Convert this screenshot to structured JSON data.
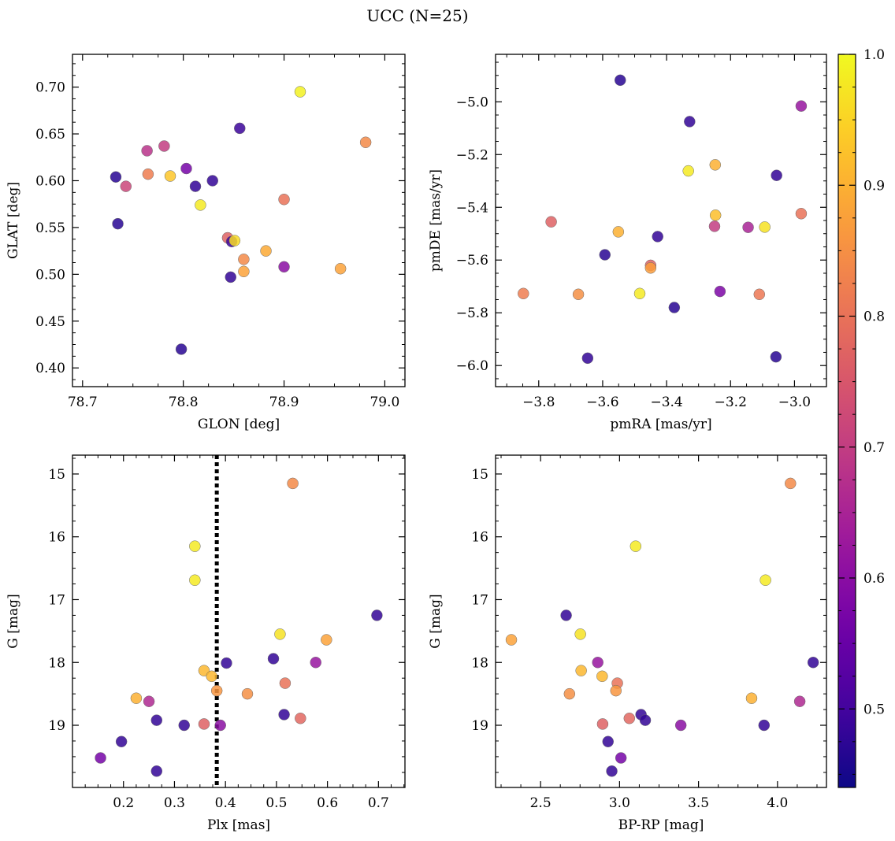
{
  "figure": {
    "title": "UCC (N=25)"
  },
  "colormap": {
    "name": "plasma",
    "range": [
      0.44,
      1.0
    ],
    "ticks": [
      0.5,
      0.6,
      0.7,
      0.8,
      0.9,
      1.0
    ],
    "tick_labels": [
      "0.5",
      "0.6",
      "0.7",
      "0.8",
      "0.9",
      "1.0"
    ],
    "stops": [
      "#0d0887",
      "#46039f",
      "#7201a8",
      "#9c179e",
      "#bd3786",
      "#d8576b",
      "#ed7953",
      "#fb9f3a",
      "#fdca26",
      "#f0f921"
    ]
  },
  "chart_data": [
    {
      "type": "scatter",
      "xlabel": "GLON [deg]",
      "ylabel": "GLAT [deg]",
      "xlim": [
        78.69,
        79.02
      ],
      "ylim": [
        0.38,
        0.735
      ],
      "xticks": [
        78.7,
        78.8,
        78.9,
        79.0
      ],
      "xtick_labels": [
        "78.7",
        "78.8",
        "78.9",
        "79.0"
      ],
      "yticks": [
        0.4,
        0.45,
        0.5,
        0.55,
        0.6,
        0.65,
        0.7
      ],
      "ytick_labels": [
        "0.40",
        "0.45",
        "0.50",
        "0.55",
        "0.60",
        "0.65",
        "0.70"
      ],
      "y_inverted": false,
      "points": [
        {
          "x": 78.733,
          "y": 0.604,
          "c": 0.47
        },
        {
          "x": 78.735,
          "y": 0.554,
          "c": 0.47
        },
        {
          "x": 78.743,
          "y": 0.594,
          "c": 0.72
        },
        {
          "x": 78.764,
          "y": 0.632,
          "c": 0.68
        },
        {
          "x": 78.765,
          "y": 0.607,
          "c": 0.82
        },
        {
          "x": 78.781,
          "y": 0.637,
          "c": 0.7
        },
        {
          "x": 78.787,
          "y": 0.605,
          "c": 0.93
        },
        {
          "x": 78.798,
          "y": 0.42,
          "c": 0.47
        },
        {
          "x": 78.803,
          "y": 0.613,
          "c": 0.57
        },
        {
          "x": 78.812,
          "y": 0.594,
          "c": 0.48
        },
        {
          "x": 78.817,
          "y": 0.574,
          "c": 0.98
        },
        {
          "x": 78.829,
          "y": 0.6,
          "c": 0.48
        },
        {
          "x": 78.844,
          "y": 0.539,
          "c": 0.77
        },
        {
          "x": 78.848,
          "y": 0.535,
          "c": 0.49
        },
        {
          "x": 78.851,
          "y": 0.536,
          "c": 0.96
        },
        {
          "x": 78.847,
          "y": 0.497,
          "c": 0.48
        },
        {
          "x": 78.856,
          "y": 0.656,
          "c": 0.49
        },
        {
          "x": 78.86,
          "y": 0.516,
          "c": 0.84
        },
        {
          "x": 78.86,
          "y": 0.503,
          "c": 0.88
        },
        {
          "x": 78.882,
          "y": 0.525,
          "c": 0.89
        },
        {
          "x": 78.9,
          "y": 0.58,
          "c": 0.8
        },
        {
          "x": 78.9,
          "y": 0.508,
          "c": 0.6
        },
        {
          "x": 78.916,
          "y": 0.695,
          "c": 0.99
        },
        {
          "x": 78.956,
          "y": 0.506,
          "c": 0.88
        },
        {
          "x": 78.981,
          "y": 0.641,
          "c": 0.84
        }
      ]
    },
    {
      "type": "scatter",
      "xlabel": "pmRA [mas/yr]",
      "ylabel": "pmDE [mas/yr]",
      "xlim": [
        -3.935,
        -2.9
      ],
      "ylim": [
        -6.08,
        -4.82
      ],
      "xticks": [
        -3.8,
        -3.6,
        -3.4,
        -3.2,
        -3.0
      ],
      "xtick_labels": [
        "−3.8",
        "−3.6",
        "−3.4",
        "−3.2",
        "−3.0"
      ],
      "yticks": [
        -6.0,
        -5.8,
        -5.6,
        -5.4,
        -5.2,
        -5.0
      ],
      "ytick_labels": [
        "−6.0",
        "−5.8",
        "−5.6",
        "−5.4",
        "−5.2",
        "−5.0"
      ],
      "y_inverted": false,
      "points": [
        {
          "x": -3.848,
          "y": -5.727,
          "c": 0.82
        },
        {
          "x": -3.761,
          "y": -5.455,
          "c": 0.77
        },
        {
          "x": -3.676,
          "y": -5.73,
          "c": 0.85
        },
        {
          "x": -3.647,
          "y": -5.972,
          "c": 0.48
        },
        {
          "x": -3.593,
          "y": -5.58,
          "c": 0.47
        },
        {
          "x": -3.551,
          "y": -5.493,
          "c": 0.9
        },
        {
          "x": -3.545,
          "y": -4.918,
          "c": 0.47
        },
        {
          "x": -3.484,
          "y": -5.727,
          "c": 0.98
        },
        {
          "x": -3.45,
          "y": -5.62,
          "c": 0.77
        },
        {
          "x": -3.45,
          "y": -5.63,
          "c": 0.87
        },
        {
          "x": -3.376,
          "y": -5.78,
          "c": 0.47
        },
        {
          "x": -3.428,
          "y": -5.511,
          "c": 0.48
        },
        {
          "x": -3.332,
          "y": -5.262,
          "c": 0.98
        },
        {
          "x": -3.328,
          "y": -5.075,
          "c": 0.48
        },
        {
          "x": -3.248,
          "y": -5.239,
          "c": 0.9
        },
        {
          "x": -3.247,
          "y": -5.43,
          "c": 0.92
        },
        {
          "x": -3.25,
          "y": -5.472,
          "c": 0.7
        },
        {
          "x": -3.233,
          "y": -5.719,
          "c": 0.58
        },
        {
          "x": -3.145,
          "y": -5.476,
          "c": 0.65
        },
        {
          "x": -3.11,
          "y": -5.73,
          "c": 0.81
        },
        {
          "x": -3.093,
          "y": -5.475,
          "c": 0.97
        },
        {
          "x": -3.058,
          "y": -5.967,
          "c": 0.47
        },
        {
          "x": -3.056,
          "y": -5.279,
          "c": 0.48
        },
        {
          "x": -2.979,
          "y": -5.016,
          "c": 0.62
        },
        {
          "x": -2.979,
          "y": -5.424,
          "c": 0.8
        }
      ]
    },
    {
      "type": "scatter",
      "xlabel": "Plx [mas]",
      "ylabel": "G [mag]",
      "xlim": [
        0.1,
        0.752
      ],
      "ylim": [
        19.99,
        14.7
      ],
      "xticks": [
        0.2,
        0.3,
        0.4,
        0.5,
        0.6,
        0.7
      ],
      "xtick_labels": [
        "0.2",
        "0.3",
        "0.4",
        "0.5",
        "0.6",
        "0.7"
      ],
      "yticks": [
        15,
        16,
        17,
        18,
        19
      ],
      "ytick_labels": [
        "15",
        "16",
        "17",
        "18",
        "19"
      ],
      "y_inverted": true,
      "reference_line": {
        "x": 0.383,
        "style": "dotted"
      },
      "points": [
        {
          "x": 0.532,
          "y": 15.15,
          "c": 0.84
        },
        {
          "x": 0.34,
          "y": 16.15,
          "c": 0.98
        },
        {
          "x": 0.34,
          "y": 16.69,
          "c": 0.98
        },
        {
          "x": 0.697,
          "y": 17.25,
          "c": 0.48
        },
        {
          "x": 0.507,
          "y": 17.55,
          "c": 0.97
        },
        {
          "x": 0.598,
          "y": 17.64,
          "c": 0.88
        },
        {
          "x": 0.494,
          "y": 17.94,
          "c": 0.48
        },
        {
          "x": 0.577,
          "y": 18.0,
          "c": 0.62
        },
        {
          "x": 0.402,
          "y": 18.01,
          "c": 0.48
        },
        {
          "x": 0.358,
          "y": 18.13,
          "c": 0.91
        },
        {
          "x": 0.373,
          "y": 18.22,
          "c": 0.91
        },
        {
          "x": 0.517,
          "y": 18.33,
          "c": 0.8
        },
        {
          "x": 0.383,
          "y": 18.45,
          "c": 0.86
        },
        {
          "x": 0.443,
          "y": 18.5,
          "c": 0.85
        },
        {
          "x": 0.225,
          "y": 18.57,
          "c": 0.9
        },
        {
          "x": 0.25,
          "y": 18.62,
          "c": 0.66
        },
        {
          "x": 0.515,
          "y": 18.83,
          "c": 0.48
        },
        {
          "x": 0.547,
          "y": 18.89,
          "c": 0.78
        },
        {
          "x": 0.265,
          "y": 18.92,
          "c": 0.48
        },
        {
          "x": 0.358,
          "y": 18.98,
          "c": 0.77
        },
        {
          "x": 0.319,
          "y": 19.0,
          "c": 0.48
        },
        {
          "x": 0.39,
          "y": 19.0,
          "c": 0.6
        },
        {
          "x": 0.196,
          "y": 19.26,
          "c": 0.48
        },
        {
          "x": 0.155,
          "y": 19.52,
          "c": 0.57
        },
        {
          "x": 0.265,
          "y": 19.73,
          "c": 0.48
        }
      ]
    },
    {
      "type": "scatter",
      "xlabel": "BP-RP [mag]",
      "ylabel": "G [mag]",
      "xlim": [
        2.215,
        4.31
      ],
      "ylim": [
        19.99,
        14.7
      ],
      "xticks": [
        2.5,
        3.0,
        3.5,
        4.0
      ],
      "xtick_labels": [
        "2.5",
        "3.0",
        "3.5",
        "4.0"
      ],
      "yticks": [
        15,
        16,
        17,
        18,
        19
      ],
      "ytick_labels": [
        "15",
        "16",
        "17",
        "18",
        "19"
      ],
      "y_inverted": true,
      "points": [
        {
          "x": 4.082,
          "y": 15.15,
          "c": 0.84
        },
        {
          "x": 3.102,
          "y": 16.15,
          "c": 0.98
        },
        {
          "x": 3.924,
          "y": 16.69,
          "c": 0.98
        },
        {
          "x": 2.662,
          "y": 17.25,
          "c": 0.48
        },
        {
          "x": 2.752,
          "y": 17.55,
          "c": 0.97
        },
        {
          "x": 2.315,
          "y": 17.64,
          "c": 0.88
        },
        {
          "x": 4.226,
          "y": 18.0,
          "c": 0.48
        },
        {
          "x": 2.862,
          "y": 18.0,
          "c": 0.62
        },
        {
          "x": 2.757,
          "y": 18.13,
          "c": 0.91
        },
        {
          "x": 2.89,
          "y": 18.22,
          "c": 0.91
        },
        {
          "x": 2.986,
          "y": 18.33,
          "c": 0.8
        },
        {
          "x": 2.977,
          "y": 18.45,
          "c": 0.86
        },
        {
          "x": 2.683,
          "y": 18.5,
          "c": 0.85
        },
        {
          "x": 3.836,
          "y": 18.57,
          "c": 0.9
        },
        {
          "x": 4.141,
          "y": 18.62,
          "c": 0.66
        },
        {
          "x": 3.136,
          "y": 18.83,
          "c": 0.48
        },
        {
          "x": 3.062,
          "y": 18.89,
          "c": 0.78
        },
        {
          "x": 3.163,
          "y": 18.92,
          "c": 0.48
        },
        {
          "x": 2.893,
          "y": 18.98,
          "c": 0.77
        },
        {
          "x": 3.388,
          "y": 19.0,
          "c": 0.6
        },
        {
          "x": 3.915,
          "y": 19.0,
          "c": 0.48
        },
        {
          "x": 2.927,
          "y": 19.26,
          "c": 0.48
        },
        {
          "x": 3.009,
          "y": 19.52,
          "c": 0.57
        },
        {
          "x": 2.951,
          "y": 19.73,
          "c": 0.48
        }
      ]
    }
  ]
}
